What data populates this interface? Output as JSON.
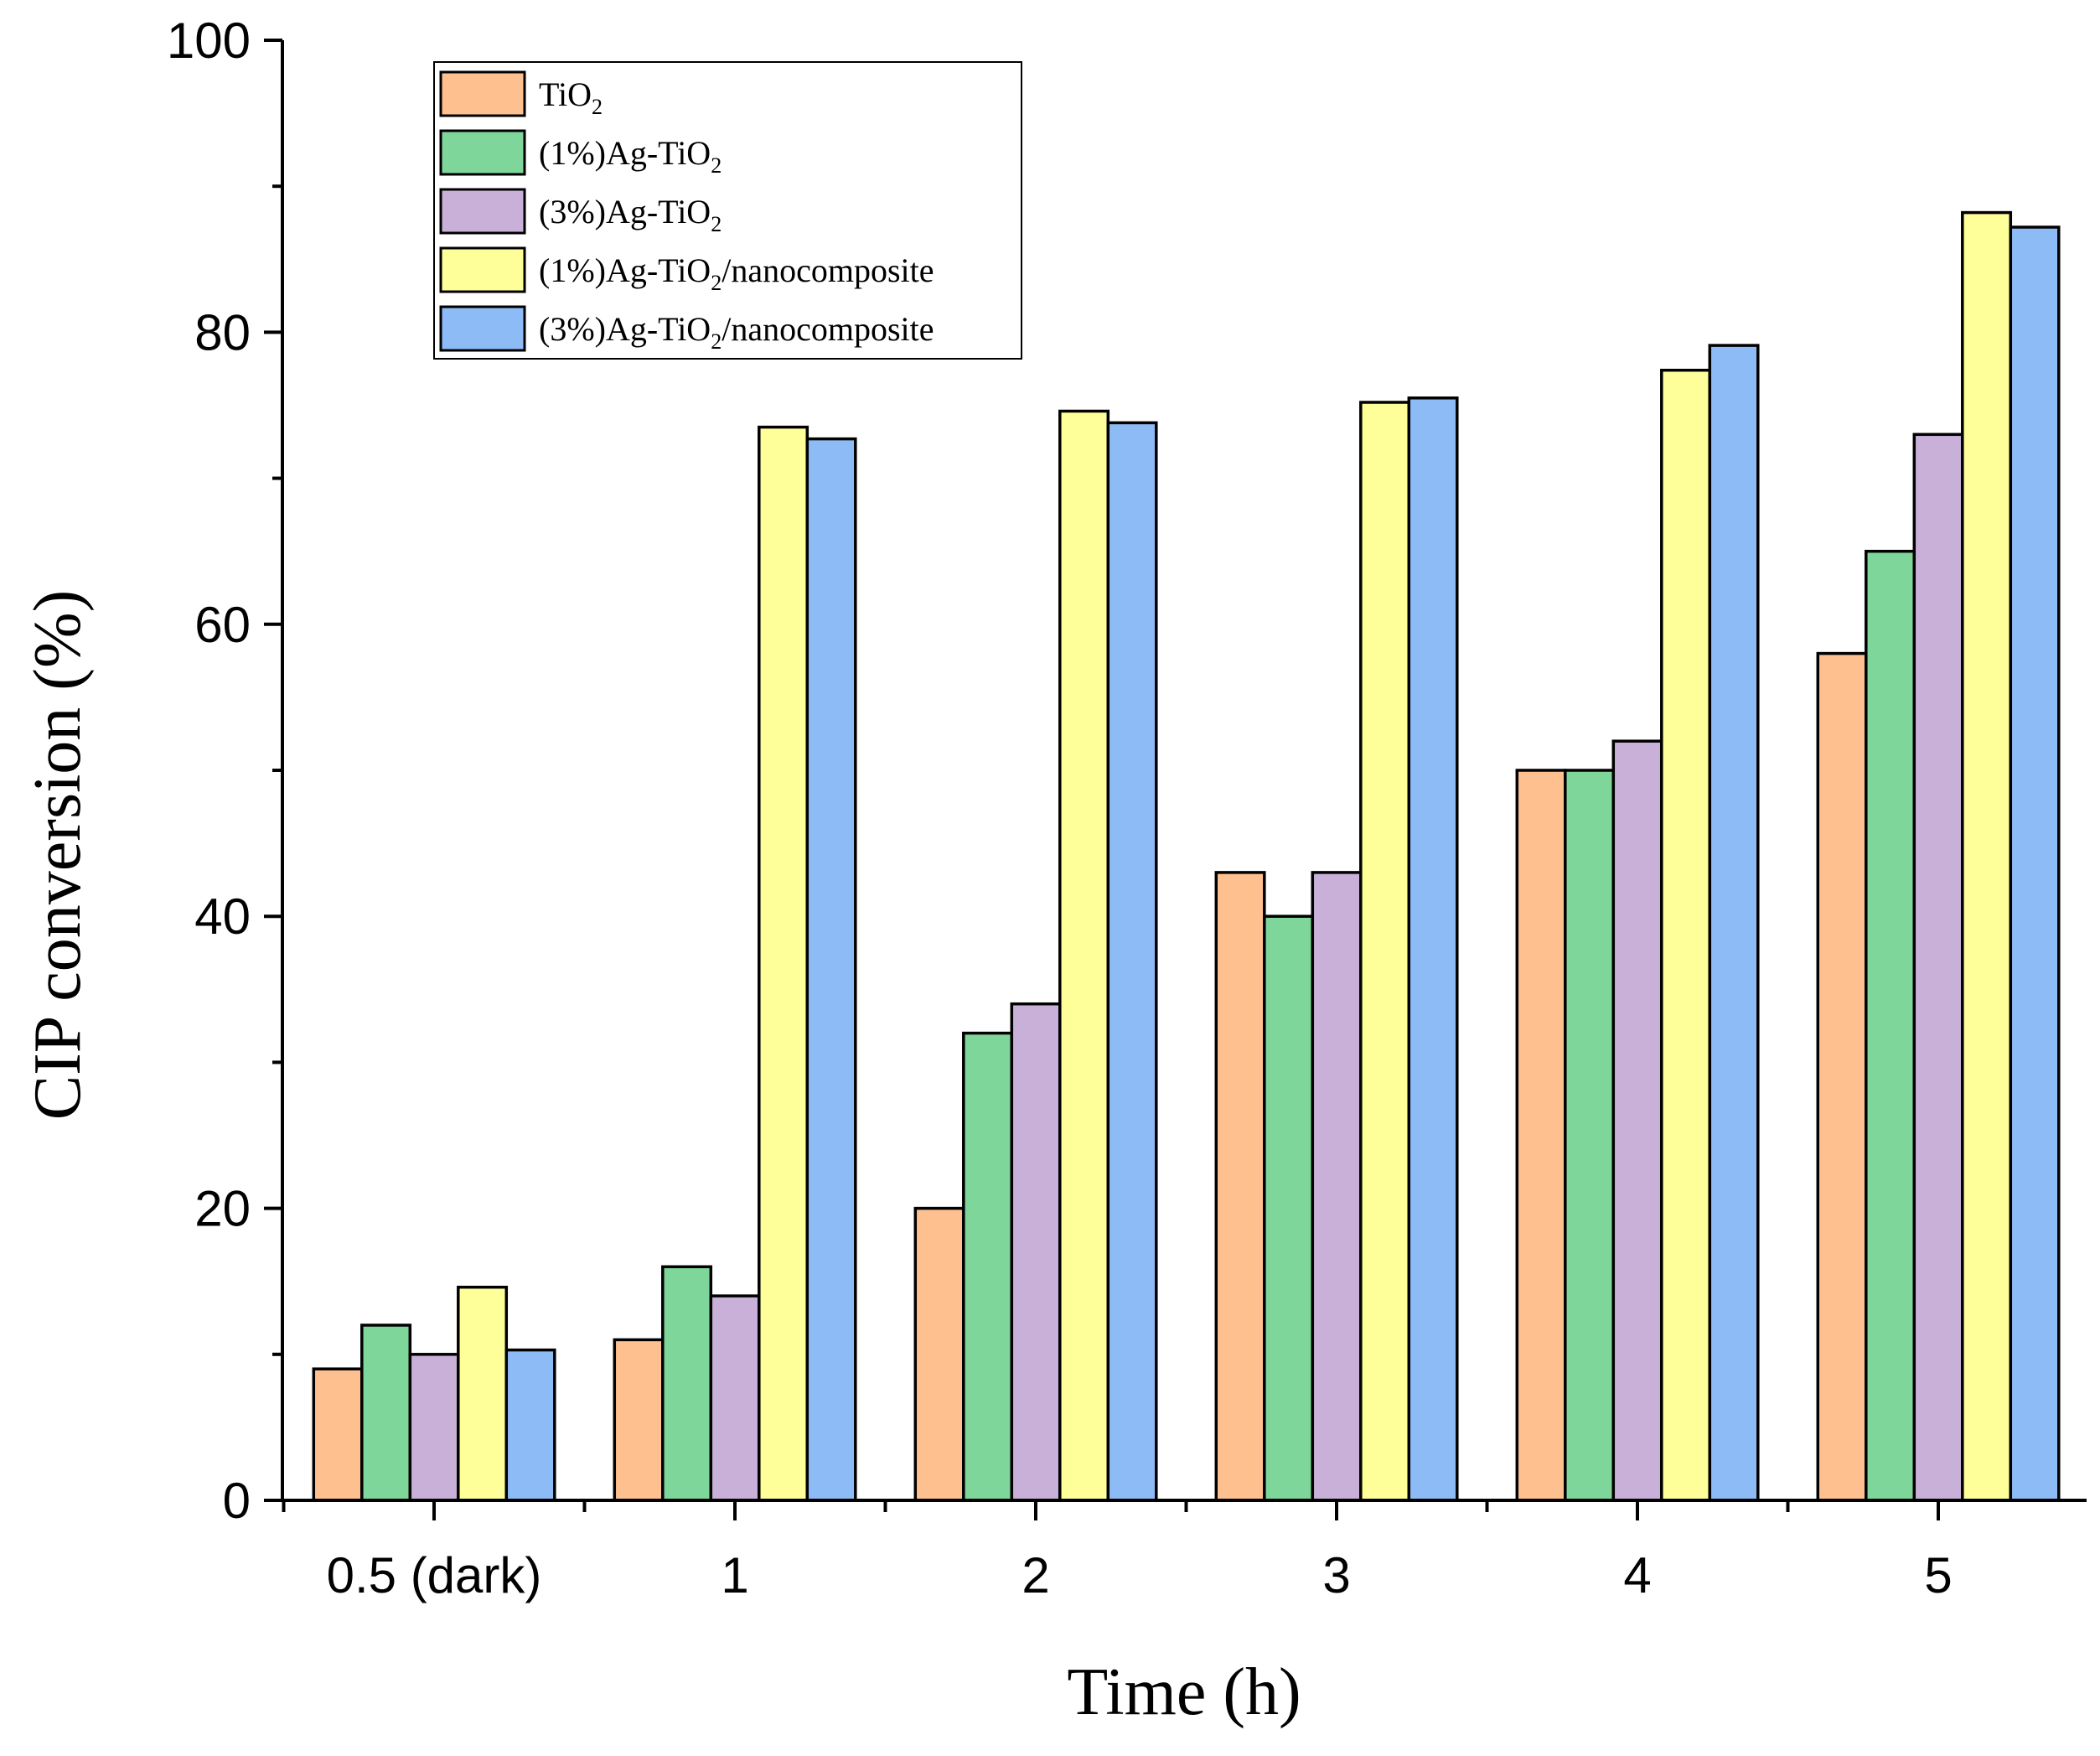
{
  "chart_data": {
    "type": "bar",
    "title": "",
    "xlabel": "Time (h)",
    "ylabel": "CIP conversion (%)",
    "ylim": [
      0,
      100
    ],
    "yticks": [
      0,
      20,
      40,
      60,
      80,
      100
    ],
    "categories": [
      "0.5 (dark)",
      "1",
      "2",
      "3",
      "4",
      "5"
    ],
    "legend_position": "top-left",
    "series": [
      {
        "name": "TiO2",
        "legend": {
          "pre": "TiO",
          "sub": "2",
          "post": ""
        },
        "color": "#FFC08F",
        "values": [
          9,
          11,
          20,
          43,
          50,
          58
        ]
      },
      {
        "name": "(1%)Ag-TiO2",
        "legend": {
          "pre": "(1%)Ag-TiO",
          "sub": "2",
          "post": ""
        },
        "color": "#7FD69A",
        "values": [
          12,
          16,
          32,
          40,
          50,
          65
        ]
      },
      {
        "name": "(3%)Ag-TiO2",
        "legend": {
          "pre": "(3%)Ag-TiO",
          "sub": "2",
          "post": ""
        },
        "color": "#C8B0D8",
        "values": [
          10,
          14,
          34,
          43,
          52,
          73
        ]
      },
      {
        "name": "(1%)Ag-TiO2/nanocomposite",
        "legend": {
          "pre": "(1%)Ag-TiO",
          "sub": "2",
          "post": "/nanocomposite"
        },
        "color": "#FFFF99",
        "values": [
          14.6,
          73.5,
          74.6,
          75.2,
          77.4,
          88.2
        ]
      },
      {
        "name": "(3%)Ag-TiO2/nanocomposite",
        "legend": {
          "pre": " (3%)Ag-TiO",
          "sub": "2",
          "post": "/nanocomposite"
        },
        "color": "#8DBBF5",
        "values": [
          10.3,
          72.7,
          73.8,
          75.5,
          79.1,
          87.2
        ]
      }
    ]
  }
}
